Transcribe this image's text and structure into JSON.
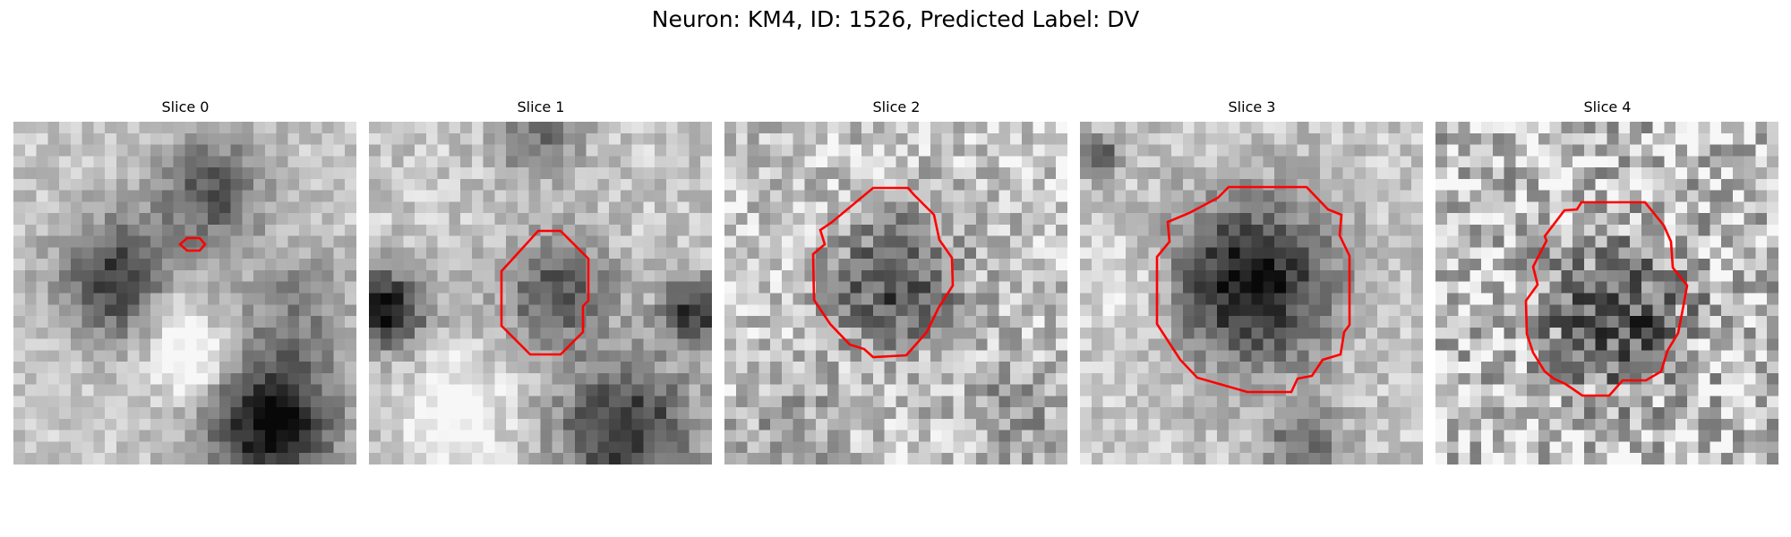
{
  "figure": {
    "title": "Neuron: KM4, ID: 1526, Predicted Label: DV",
    "outline_color": "#ff0000",
    "grid_size": 30
  },
  "slices": [
    {
      "label": "Slice 0",
      "seed": 11,
      "noise": 0.12,
      "roi": "small"
    },
    {
      "label": "Slice 1",
      "seed": 23,
      "noise": 0.14,
      "roi": "medium"
    },
    {
      "label": "Slice 2",
      "seed": 37,
      "noise": 0.22,
      "roi": "large"
    },
    {
      "label": "Slice 3",
      "seed": 41,
      "noise": 0.14,
      "roi": "large"
    },
    {
      "label": "Slice 4",
      "seed": 59,
      "noise": 0.32,
      "roi": "large"
    }
  ]
}
